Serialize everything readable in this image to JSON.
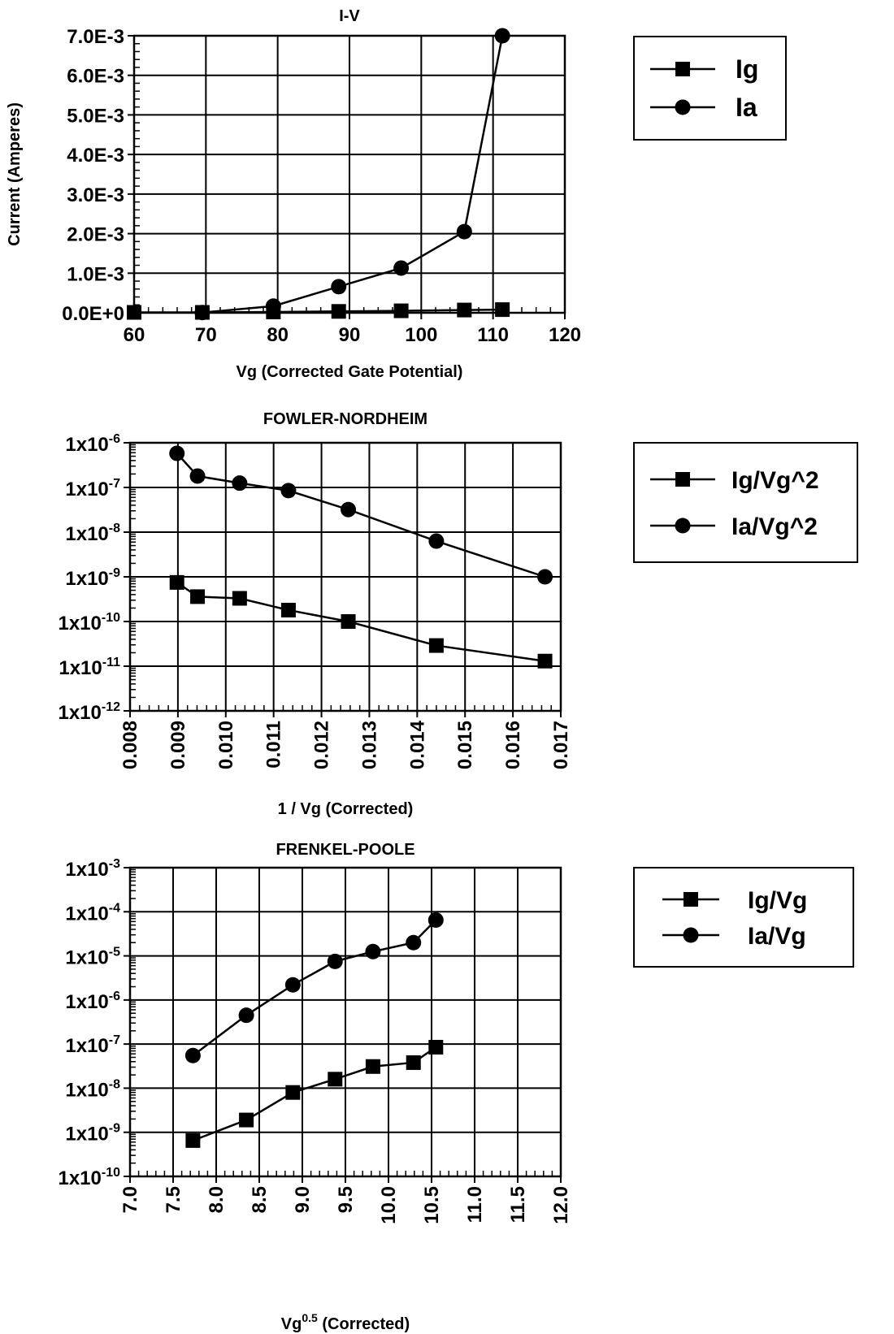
{
  "chart_data": [
    {
      "type": "line",
      "title": "I-V",
      "xlabel": "Vg (Corrected Gate Potential)",
      "ylabel": "Current (Amperes)",
      "xlim": [
        60,
        120
      ],
      "ylim": [
        0,
        0.007
      ],
      "x_scale": "linear",
      "y_scale": "linear",
      "grid": true,
      "legend_position": "right",
      "x_ticks": [
        60,
        70,
        80,
        90,
        100,
        110,
        120
      ],
      "x_tick_labels": [
        "60",
        "70",
        "80",
        "90",
        "100",
        "110",
        "120"
      ],
      "y_ticks": [
        0,
        0.001,
        0.002,
        0.003,
        0.004,
        0.005,
        0.006,
        0.007
      ],
      "y_tick_labels": [
        "0.0E+0",
        "1.0E-3",
        "2.0E-3",
        "3.0E-3",
        "4.0E-3",
        "5.0E-3",
        "6.0E-3",
        "7.0E-3"
      ],
      "series": [
        {
          "name": "Ig",
          "marker": "square",
          "x": [
            60,
            69.5,
            79.4,
            88.5,
            97.2,
            106,
            111.3
          ],
          "y": [
            1e-05,
            1e-05,
            2e-05,
            3.5e-05,
            5e-05,
            7e-05,
            8e-05
          ]
        },
        {
          "name": "Ia",
          "marker": "circle",
          "x": [
            69.5,
            79.4,
            88.5,
            97.2,
            106,
            111.3
          ],
          "y": [
            5e-06,
            0.00017,
            0.00066,
            0.00113,
            0.00205,
            0.00705
          ]
        }
      ]
    },
    {
      "type": "line",
      "title": "FOWLER-NORDHEIM",
      "xlabel": "1 / Vg (Corrected)",
      "ylabel": "",
      "xlim": [
        0.008,
        0.017
      ],
      "ylim": [
        1e-12,
        1e-06
      ],
      "x_scale": "linear",
      "y_scale": "log",
      "grid": true,
      "legend_position": "right",
      "x_ticks": [
        0.008,
        0.009,
        0.01,
        0.011,
        0.012,
        0.013,
        0.014,
        0.015,
        0.016,
        0.017
      ],
      "x_tick_labels": [
        "0.008",
        "0.009",
        "0.010",
        "0.011",
        "0.012",
        "0.013",
        "0.014",
        "0.015",
        "0.016",
        "0.017"
      ],
      "y_ticks": [
        1e-12,
        1e-11,
        1e-10,
        1e-09,
        1e-08,
        1e-07,
        1e-06
      ],
      "y_tick_bases": [
        "1x10",
        "1x10",
        "1x10",
        "1x10",
        "1x10",
        "1x10",
        "1x10"
      ],
      "y_tick_exps": [
        "-12",
        "-11",
        "-10",
        "-9",
        "-8",
        "-7",
        "-6"
      ],
      "series": [
        {
          "name": "Ig/Vg^2",
          "marker": "square",
          "x": [
            0.00898,
            0.00941,
            0.01029,
            0.01131,
            0.01256,
            0.0144,
            0.01667
          ],
          "y": [
            7.5e-10,
            3.6e-10,
            3.3e-10,
            1.8e-10,
            1e-10,
            2.9e-11,
            1.3e-11
          ]
        },
        {
          "name": "Ia/Vg^2",
          "marker": "circle",
          "x": [
            0.00898,
            0.00941,
            0.01029,
            0.01131,
            0.01256,
            0.0144,
            0.01667
          ],
          "y": [
            5.8e-07,
            1.8e-07,
            1.25e-07,
            8.5e-08,
            3.2e-08,
            6.3e-09,
            1e-09
          ]
        }
      ]
    },
    {
      "type": "line",
      "title": "FRENKEL-POOLE",
      "xlabel_base": "Vg",
      "xlabel_sup": "0.5",
      "xlabel_rest": " (Corrected)",
      "ylabel": "",
      "xlim": [
        7.0,
        12.0
      ],
      "ylim": [
        1e-10,
        0.001
      ],
      "x_scale": "linear",
      "y_scale": "log",
      "grid": true,
      "legend_position": "right",
      "x_ticks": [
        7.0,
        7.5,
        8.0,
        8.5,
        9.0,
        9.5,
        10.0,
        10.5,
        11.0,
        11.5,
        12.0
      ],
      "x_tick_labels": [
        "7.0",
        "7.5",
        "8.0",
        "8.5",
        "9.0",
        "9.5",
        "10.0",
        "10.5",
        "11.0",
        "11.5",
        "12.0"
      ],
      "y_ticks": [
        1e-10,
        1e-09,
        1e-08,
        1e-07,
        1e-06,
        1e-05,
        0.0001,
        0.001
      ],
      "y_tick_bases": [
        "1x10",
        "1x10",
        "1x10",
        "1x10",
        "1x10",
        "1x10",
        "1x10",
        "1x10"
      ],
      "y_tick_exps": [
        "-10",
        "-9",
        "-8",
        "-7",
        "-6",
        "-5",
        "-4",
        "-3"
      ],
      "series": [
        {
          "name": "Ig/Vg",
          "marker": "square",
          "x": [
            7.73,
            8.35,
            8.89,
            9.38,
            9.82,
            10.29,
            10.55
          ],
          "y": [
            6.5e-10,
            1.9e-09,
            8e-09,
            1.6e-08,
            3.1e-08,
            3.8e-08,
            8.5e-08
          ]
        },
        {
          "name": "Ia/Vg",
          "marker": "circle",
          "x": [
            7.73,
            8.35,
            8.89,
            9.38,
            9.82,
            10.29,
            10.55
          ],
          "y": [
            5.5e-08,
            4.5e-07,
            2.2e-06,
            7.5e-06,
            1.25e-05,
            2e-05,
            6.5e-05
          ]
        }
      ]
    }
  ]
}
